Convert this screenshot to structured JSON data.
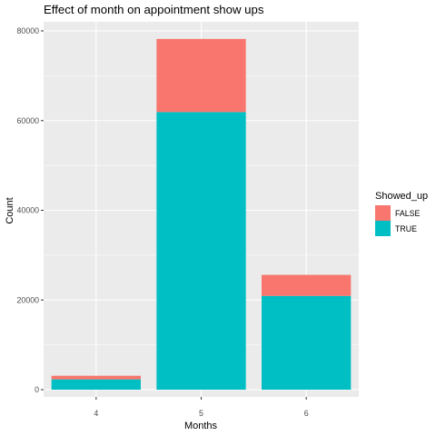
{
  "chart_data": {
    "type": "bar",
    "stacked": true,
    "title": "Effect of month on appointment show ups",
    "xlabel": "Months",
    "ylabel": "Count",
    "categories": [
      "4",
      "5",
      "6"
    ],
    "ylim": [
      0,
      80000
    ],
    "yticks": [
      0,
      20000,
      40000,
      60000,
      80000
    ],
    "grid": true,
    "legend": {
      "title": "Showed_up",
      "position": "right"
    },
    "series": [
      {
        "name": "TRUE",
        "color": "#00BFC4",
        "values": [
          2300,
          61900,
          20900
        ]
      },
      {
        "name": "FALSE",
        "color": "#F8766D",
        "values": [
          800,
          16300,
          4700
        ]
      }
    ]
  }
}
